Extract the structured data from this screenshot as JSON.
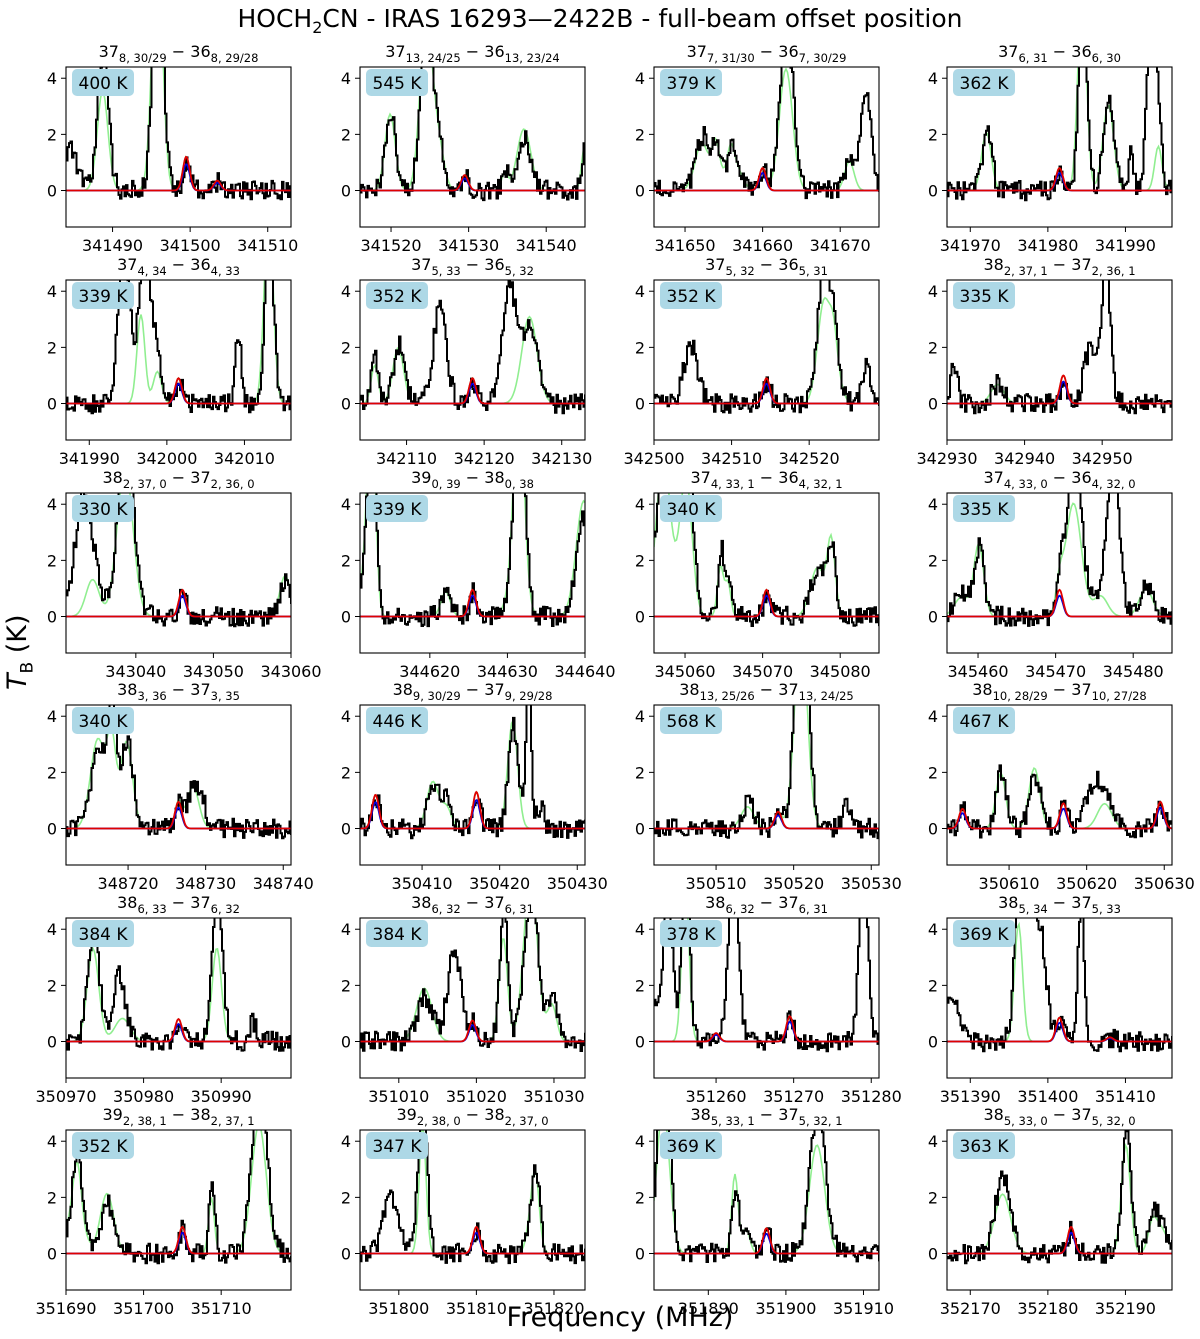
{
  "figure": {
    "title_prefix": "HOCH",
    "title_sub": "2",
    "title_suffix": "CN - IRAS 16293—2422B - full-beam offset position",
    "xlabel": "Frequency (MHz)",
    "ylabel_main": "T",
    "ylabel_sub": "B",
    "ylabel_unit": " (K)"
  },
  "colors": {
    "observed": "#000000",
    "model_red": "#e00000",
    "model_blue": "#0000dd",
    "full_model_green": "#90ee90",
    "badge_bg": "#add8e6"
  },
  "chart_data": [
    {
      "type": "line",
      "title": "37_{8, 30/29} − 36_{8, 29/28}",
      "badge": "400 K",
      "xlim": [
        341484,
        341513
      ],
      "ylim": [
        -1.3,
        4.4
      ],
      "xticks": [
        341490,
        341500,
        341510
      ],
      "yticks": [
        0,
        2,
        4
      ],
      "lines": [
        341499.5,
        341503.5
      ],
      "peaks": [
        1.2,
        0.35
      ]
    },
    {
      "type": "line",
      "title": "37_{13, 24/25} − 36_{13, 23/24}",
      "badge": "545 K",
      "xlim": [
        341516,
        341545
      ],
      "ylim": [
        -1.3,
        4.4
      ],
      "xticks": [
        341520,
        341530,
        341540
      ],
      "yticks": [
        0,
        2,
        4
      ],
      "lines": [
        341529.5
      ],
      "peaks": [
        0.55
      ]
    },
    {
      "type": "line",
      "title": "37_{7, 31/30} − 36_{7, 30/29}",
      "badge": "379 K",
      "xlim": [
        341646,
        341675
      ],
      "ylim": [
        -1.3,
        4.4
      ],
      "xticks": [
        341650,
        341660,
        341670
      ],
      "yticks": [
        0,
        2,
        4
      ],
      "lines": [
        341660
      ],
      "peaks": [
        0.8
      ]
    },
    {
      "type": "line",
      "title": "37_{6, 31} − 36_{6, 30}",
      "badge": "362 K",
      "xlim": [
        341967,
        341996
      ],
      "ylim": [
        -1.3,
        4.4
      ],
      "xticks": [
        341970,
        341980,
        341990
      ],
      "yticks": [
        0,
        2,
        4
      ],
      "lines": [
        341981.5
      ],
      "peaks": [
        0.8
      ]
    },
    {
      "type": "line",
      "title": "37_{4, 34} − 36_{4, 33}",
      "badge": "339 K",
      "xlim": [
        341987,
        342016
      ],
      "ylim": [
        -1.3,
        4.4
      ],
      "xticks": [
        341990,
        342000,
        342010
      ],
      "yticks": [
        0,
        2,
        4
      ],
      "lines": [
        342001.5
      ],
      "peaks": [
        0.9
      ]
    },
    {
      "type": "line",
      "title": "37_{5, 33} − 36_{5, 32}",
      "badge": "352 K",
      "xlim": [
        342104,
        342133
      ],
      "ylim": [
        -1.3,
        4.4
      ],
      "xticks": [
        342110,
        342120,
        342130
      ],
      "yticks": [
        0,
        2,
        4
      ],
      "lines": [
        342118.5
      ],
      "peaks": [
        0.9
      ]
    },
    {
      "type": "line",
      "title": "37_{5, 32} − 36_{5, 31}",
      "badge": "352 K",
      "xlim": [
        342500,
        342529
      ],
      "ylim": [
        -1.3,
        4.4
      ],
      "xticks": [
        342500,
        342510,
        342520
      ],
      "yticks": [
        0,
        2,
        4
      ],
      "lines": [
        342514.5
      ],
      "peaks": [
        0.9
      ]
    },
    {
      "type": "line",
      "title": "38_{2, 37, 1} − 37_{2, 36, 1}",
      "badge": "335 K",
      "xlim": [
        342930,
        342959
      ],
      "ylim": [
        -1.3,
        4.4
      ],
      "xticks": [
        342930,
        342940,
        342950
      ],
      "yticks": [
        0,
        2,
        4
      ],
      "lines": [
        342945
      ],
      "peaks": [
        1.0
      ]
    },
    {
      "type": "line",
      "title": "38_{2, 37, 0} − 37_{2, 36, 0}",
      "badge": "330 K",
      "xlim": [
        343031,
        343060
      ],
      "ylim": [
        -1.3,
        4.4
      ],
      "xticks": [
        343040,
        343050,
        343060
      ],
      "yticks": [
        0,
        2,
        4
      ],
      "lines": [
        343046
      ],
      "peaks": [
        0.95
      ]
    },
    {
      "type": "line",
      "title": "39_{0, 39} − 38_{0, 38}",
      "badge": "339 K",
      "xlim": [
        344611,
        344640
      ],
      "ylim": [
        -1.3,
        4.4
      ],
      "xticks": [
        344620,
        344630,
        344640
      ],
      "yticks": [
        0,
        2,
        4
      ],
      "lines": [
        344625.5
      ],
      "peaks": [
        0.95
      ]
    },
    {
      "type": "line",
      "title": "37_{4, 33, 1} − 36_{4, 32, 1}",
      "badge": "340 K",
      "xlim": [
        345056,
        345085
      ],
      "ylim": [
        -1.3,
        4.4
      ],
      "xticks": [
        345060,
        345070,
        345080
      ],
      "yticks": [
        0,
        2,
        4
      ],
      "lines": [
        345070.5
      ],
      "peaks": [
        0.95
      ]
    },
    {
      "type": "line",
      "title": "37_{4, 33, 0} − 36_{4, 32, 0}",
      "badge": "335 K",
      "xlim": [
        345456,
        345485
      ],
      "ylim": [
        -1.3,
        4.4
      ],
      "xticks": [
        345460,
        345470,
        345480
      ],
      "yticks": [
        0,
        2,
        4
      ],
      "lines": [
        345470.5
      ],
      "peaks": [
        0.95
      ]
    },
    {
      "type": "line",
      "title": "38_{3, 36} − 37_{3, 35}",
      "badge": "340 K",
      "xlim": [
        348712,
        348741
      ],
      "ylim": [
        -1.3,
        4.4
      ],
      "xticks": [
        348720,
        348730,
        348740
      ],
      "yticks": [
        0,
        2,
        4
      ],
      "lines": [
        348726.5
      ],
      "peaks": [
        0.95
      ]
    },
    {
      "type": "line",
      "title": "38_{9, 30/29} − 37_{9, 29/28}",
      "badge": "446 K",
      "xlim": [
        350402,
        350431
      ],
      "ylim": [
        -1.3,
        4.4
      ],
      "xticks": [
        350410,
        350420,
        350430
      ],
      "yticks": [
        0,
        2,
        4
      ],
      "lines": [
        350404,
        350417
      ],
      "peaks": [
        1.2,
        1.3
      ]
    },
    {
      "type": "line",
      "title": "38_{13, 25/26} − 37_{13, 24/25}",
      "badge": "568 K",
      "xlim": [
        350502,
        350531
      ],
      "ylim": [
        -1.3,
        4.4
      ],
      "xticks": [
        350510,
        350520,
        350530
      ],
      "yticks": [
        0,
        2,
        4
      ],
      "lines": [
        350518
      ],
      "peaks": [
        0.6
      ]
    },
    {
      "type": "line",
      "title": "38_{10, 28/29} − 37_{10, 27/28}",
      "badge": "467 K",
      "xlim": [
        350602,
        350631
      ],
      "ylim": [
        -1.3,
        4.4
      ],
      "xticks": [
        350610,
        350620,
        350630
      ],
      "yticks": [
        0,
        2,
        4
      ],
      "lines": [
        350604,
        350617,
        350629.5
      ],
      "peaks": [
        0.7,
        0.9,
        0.95
      ]
    },
    {
      "type": "line",
      "title": "38_{6, 33} − 37_{6, 32}",
      "badge": "384 K",
      "xlim": [
        350970,
        350999
      ],
      "ylim": [
        -1.3,
        4.4
      ],
      "xticks": [
        350970,
        350980,
        350990
      ],
      "yticks": [
        0,
        2,
        4
      ],
      "lines": [
        350984.5
      ],
      "peaks": [
        0.8
      ]
    },
    {
      "type": "line",
      "title": "38_{6, 32} − 37_{6, 31}",
      "badge": "384 K",
      "xlim": [
        351005,
        351034
      ],
      "ylim": [
        -1.3,
        4.4
      ],
      "xticks": [
        351010,
        351020,
        351030
      ],
      "yticks": [
        0,
        2,
        4
      ],
      "lines": [
        351019.5
      ],
      "peaks": [
        0.75
      ]
    },
    {
      "type": "line",
      "title": "38_{6, 32} − 37_{6, 31}",
      "badge": "378 K",
      "xlim": [
        351252,
        351281
      ],
      "ylim": [
        -1.3,
        4.4
      ],
      "xticks": [
        351260,
        351270,
        351280
      ],
      "yticks": [
        0,
        2,
        4
      ],
      "lines": [
        351260,
        351269.5
      ],
      "peaks": [
        0.3,
        0.9
      ]
    },
    {
      "type": "line",
      "title": "38_{5, 34} − 37_{5, 33}",
      "badge": "369 K",
      "xlim": [
        351387,
        351416
      ],
      "ylim": [
        -1.3,
        4.4
      ],
      "xticks": [
        351390,
        351400,
        351410
      ],
      "yticks": [
        0,
        2,
        4
      ],
      "lines": [
        351401.5,
        351408
      ],
      "peaks": [
        0.85,
        0.15
      ]
    },
    {
      "type": "line",
      "title": "39_{2, 38, 1} − 38_{2, 37, 1}",
      "badge": "352 K",
      "xlim": [
        351690,
        351719
      ],
      "ylim": [
        -1.3,
        4.4
      ],
      "xticks": [
        351690,
        351700,
        351710
      ],
      "yticks": [
        0,
        2,
        4
      ],
      "lines": [
        351705
      ],
      "peaks": [
        0.95
      ]
    },
    {
      "type": "line",
      "title": "39_{2, 38, 0} − 38_{2, 37, 0}",
      "badge": "347 K",
      "xlim": [
        351795,
        351824
      ],
      "ylim": [
        -1.3,
        4.4
      ],
      "xticks": [
        351800,
        351810,
        351820
      ],
      "yticks": [
        0,
        2,
        4
      ],
      "lines": [
        351810
      ],
      "peaks": [
        0.95
      ]
    },
    {
      "type": "line",
      "title": "38_{5, 33, 1} − 37_{5, 32, 1}",
      "badge": "369 K",
      "xlim": [
        351883,
        351912
      ],
      "ylim": [
        -1.3,
        4.4
      ],
      "xticks": [
        351890,
        351900,
        351910
      ],
      "yticks": [
        0,
        2,
        4
      ],
      "lines": [
        351897.5
      ],
      "peaks": [
        0.9
      ]
    },
    {
      "type": "line",
      "title": "38_{5, 33, 0} − 37_{5, 32, 0}",
      "badge": "363 K",
      "xlim": [
        352167,
        352196
      ],
      "ylim": [
        -1.3,
        4.4
      ],
      "xticks": [
        352170,
        352180,
        352190
      ],
      "yticks": [
        0,
        2,
        4
      ],
      "lines": [
        352183
      ],
      "peaks": [
        0.95
      ]
    }
  ]
}
